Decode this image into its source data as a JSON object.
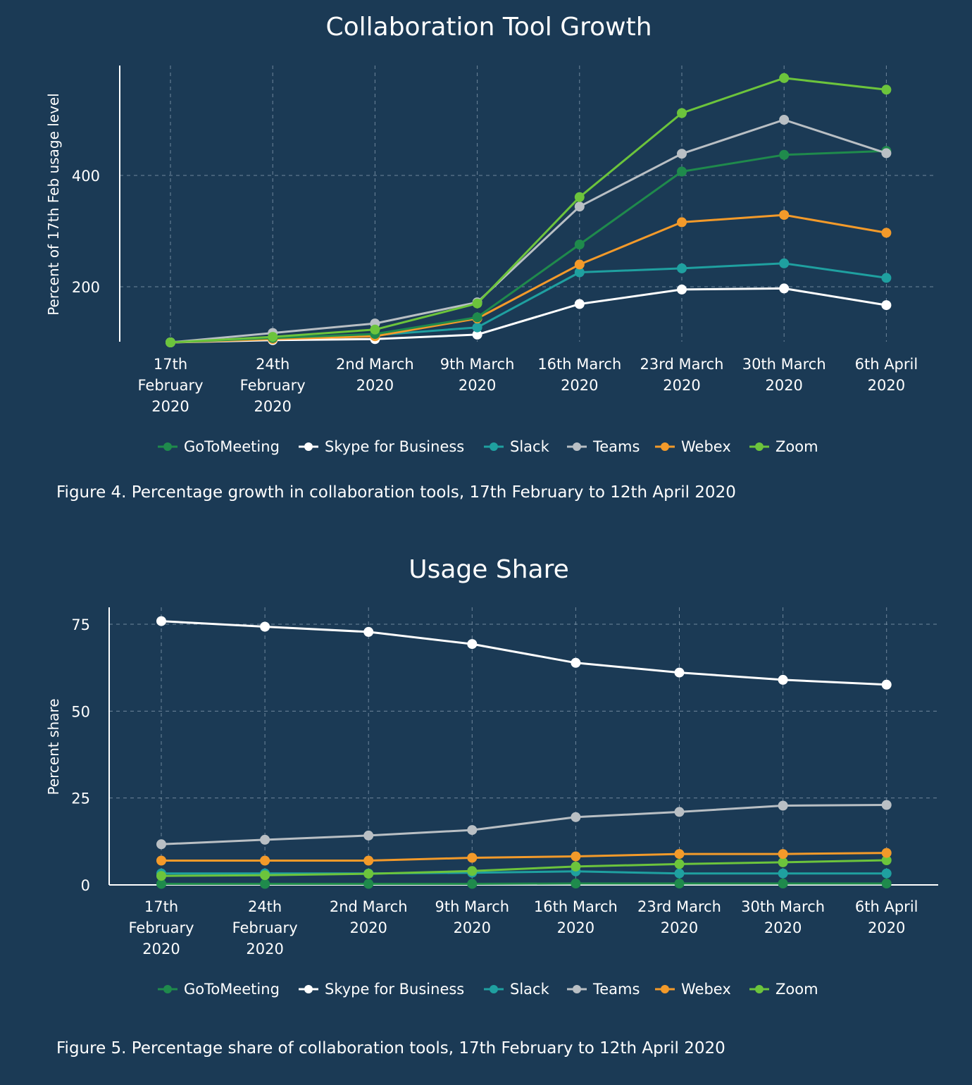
{
  "chart_data": [
    {
      "type": "line",
      "title": "Collaboration Tool Growth",
      "xlabel": "",
      "ylabel": "Percent of 17th Feb usage level",
      "categories": [
        [
          "17th",
          "February",
          "2020"
        ],
        [
          "24th",
          "February",
          "2020"
        ],
        [
          "2nd March",
          "2020"
        ],
        [
          "9th March",
          "2020"
        ],
        [
          "16th March",
          "2020"
        ],
        [
          "23rd March",
          "2020"
        ],
        [
          "30th March",
          "2020"
        ],
        [
          "6th April",
          "2020"
        ]
      ],
      "yticks": [
        200,
        400
      ],
      "ylim": [
        100,
        595
      ],
      "grid": true,
      "legend_position": "bottom",
      "series": [
        {
          "name": "Skype for Business",
          "color": "#ffffff",
          "values": [
            100,
            104,
            106,
            114,
            169,
            195,
            197,
            167
          ]
        },
        {
          "name": "Slack",
          "color": "#1fa0a0",
          "values": [
            100,
            108,
            113,
            127,
            226,
            233,
            242,
            216
          ]
        },
        {
          "name": "Webex",
          "color": "#f39a2a",
          "values": [
            100,
            106,
            111,
            143,
            240,
            316,
            329,
            297
          ]
        },
        {
          "name": "GoToMeeting",
          "color": "#1f8a4c",
          "values": [
            100,
            108,
            115,
            145,
            276,
            407,
            437,
            444
          ]
        },
        {
          "name": "Teams",
          "color": "#b9bfc4",
          "values": [
            100,
            117,
            134,
            172,
            344,
            439,
            500,
            440
          ]
        },
        {
          "name": "Zoom",
          "color": "#6cc43c",
          "values": [
            100,
            110,
            123,
            170,
            361,
            512,
            575,
            554
          ]
        }
      ],
      "legend": [
        "GoToMeeting",
        "Skype for Business",
        "Slack",
        "Teams",
        "Webex",
        "Zoom"
      ],
      "caption": "Figure 4. Percentage growth in collaboration tools,  17th February to 12th April 2020"
    },
    {
      "type": "line",
      "title": "Usage Share",
      "xlabel": "",
      "ylabel": "Percent share",
      "categories": [
        [
          "17th",
          "February",
          "2020"
        ],
        [
          "24th",
          "February",
          "2020"
        ],
        [
          "2nd March",
          "2020"
        ],
        [
          "9th March",
          "2020"
        ],
        [
          "16th March",
          "2020"
        ],
        [
          "23rd March",
          "2020"
        ],
        [
          "30th March",
          "2020"
        ],
        [
          "6th April",
          "2020"
        ]
      ],
      "yticks": [
        0,
        25,
        50,
        75
      ],
      "ylim": [
        0,
        80
      ],
      "grid": true,
      "legend_position": "bottom",
      "series": [
        {
          "name": "GoToMeeting",
          "color": "#1f8a4c",
          "values": [
            0.3,
            0.3,
            0.3,
            0.3,
            0.4,
            0.4,
            0.4,
            0.4
          ]
        },
        {
          "name": "Slack",
          "color": "#1fa0a0",
          "values": [
            3.3,
            3.3,
            3.3,
            3.5,
            3.9,
            3.3,
            3.3,
            3.3
          ]
        },
        {
          "name": "Zoom",
          "color": "#6cc43c",
          "values": [
            2.6,
            2.8,
            3.2,
            4.0,
            5.3,
            6.0,
            6.5,
            7.1
          ]
        },
        {
          "name": "Webex",
          "color": "#f39a2a",
          "values": [
            7.0,
            7.0,
            7.0,
            7.8,
            8.2,
            8.9,
            8.9,
            9.2
          ]
        },
        {
          "name": "Teams",
          "color": "#b9bfc4",
          "values": [
            11.7,
            13.0,
            14.2,
            15.8,
            19.5,
            21.0,
            22.8,
            23.0
          ]
        },
        {
          "name": "Skype for Business",
          "color": "#ffffff",
          "values": [
            75.9,
            74.3,
            72.8,
            69.3,
            63.9,
            61.1,
            59.0,
            57.6
          ]
        }
      ],
      "legend": [
        "GoToMeeting",
        "Skype for Business",
        "Slack",
        "Teams",
        "Webex",
        "Zoom"
      ],
      "caption": "Figure 5. Percentage share of collaboration tools,  17th February to 12th April 2020"
    }
  ]
}
